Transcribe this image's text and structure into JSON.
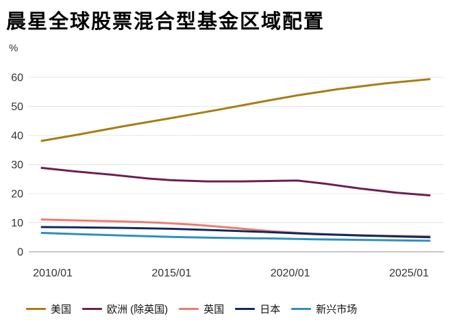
{
  "title": "晨星全球股票混合型基金区域配置",
  "y_unit": "%",
  "axis_color": "#909090",
  "gridline_color": "#e4e4e4",
  "chart_data": {
    "type": "line",
    "title": "晨星全球股票混合型基金区域配置",
    "xlabel": "",
    "ylabel": "%",
    "ylim": [
      0,
      60
    ],
    "yticks": [
      0,
      10,
      20,
      30,
      40,
      50,
      60
    ],
    "grid": "horizontal",
    "legend_position": "bottom",
    "xticks": [
      {
        "year": 2010,
        "label": "2010/01"
      },
      {
        "year": 2015,
        "label": "2015/01"
      },
      {
        "year": 2020,
        "label": "2020/01"
      },
      {
        "year": 2025,
        "label": "2025/01"
      }
    ],
    "series": [
      {
        "id": "us",
        "name": "美国",
        "color": "#A87D10",
        "points": [
          [
            2009.5,
            38.1
          ],
          [
            2011,
            40.2
          ],
          [
            2013,
            43.2
          ],
          [
            2015,
            46.0
          ],
          [
            2017,
            48.9
          ],
          [
            2019,
            51.9
          ],
          [
            2020.3,
            53.8
          ],
          [
            2022,
            55.9
          ],
          [
            2024,
            57.9
          ],
          [
            2025.9,
            59.4
          ]
        ]
      },
      {
        "id": "europe-ex-uk",
        "name": "欧洲 (除英国)",
        "color": "#6F1E4C",
        "points": [
          [
            2009.5,
            28.9
          ],
          [
            2011,
            27.6
          ],
          [
            2012.5,
            26.5
          ],
          [
            2014,
            25.2
          ],
          [
            2015,
            24.6
          ],
          [
            2016.5,
            24.2
          ],
          [
            2018,
            24.2
          ],
          [
            2019.5,
            24.4
          ],
          [
            2020.3,
            24.5
          ],
          [
            2021.5,
            23.4
          ],
          [
            2023,
            21.7
          ],
          [
            2024.5,
            20.3
          ],
          [
            2025.9,
            19.4
          ]
        ]
      },
      {
        "id": "uk",
        "name": "英国",
        "color": "#EE7B6F",
        "points": [
          [
            2009.5,
            11.1
          ],
          [
            2011,
            10.8
          ],
          [
            2013,
            10.4
          ],
          [
            2014.5,
            10.0
          ],
          [
            2016,
            9.3
          ],
          [
            2017.5,
            8.3
          ],
          [
            2019,
            7.2
          ],
          [
            2020.5,
            6.4
          ],
          [
            2022,
            5.9
          ],
          [
            2023.5,
            5.6
          ],
          [
            2025.9,
            5.3
          ]
        ]
      },
      {
        "id": "japan",
        "name": "日本",
        "color": "#12295B",
        "points": [
          [
            2009.5,
            8.5
          ],
          [
            2011,
            8.4
          ],
          [
            2013,
            8.2
          ],
          [
            2015,
            7.9
          ],
          [
            2017,
            7.4
          ],
          [
            2019,
            6.8
          ],
          [
            2021,
            6.1
          ],
          [
            2023,
            5.6
          ],
          [
            2025.9,
            5.0
          ]
        ]
      },
      {
        "id": "emerging-markets",
        "name": "新兴市场",
        "color": "#2E8FBF",
        "points": [
          [
            2009.5,
            6.5
          ],
          [
            2011,
            6.1
          ],
          [
            2013,
            5.6
          ],
          [
            2015,
            5.1
          ],
          [
            2017,
            4.8
          ],
          [
            2019,
            4.6
          ],
          [
            2021,
            4.3
          ],
          [
            2023,
            4.1
          ],
          [
            2025.9,
            3.8
          ]
        ]
      }
    ]
  }
}
